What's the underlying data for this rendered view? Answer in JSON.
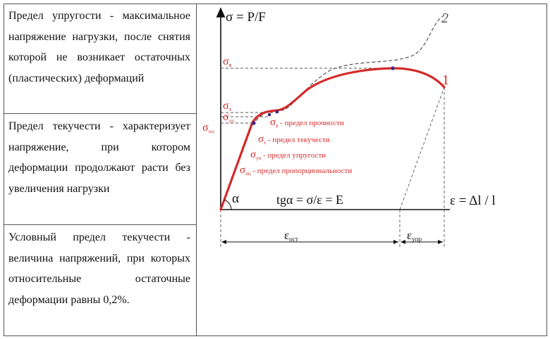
{
  "definitions": [
    {
      "text": "Предел упругости - максимальное напряжение нагрузки, после снятия которой не возникает остаточных (пластических) деформаций"
    },
    {
      "text": "Предел текучести - характеризует напряжение, при котором деформации продолжают расти без увеличения нагрузки"
    },
    {
      "text": "Условный предел текучести - величина напряжений, при которых относительные остаточные деформации равны 0,2%."
    }
  ],
  "diagram": {
    "y_axis_label": "σ = P/F",
    "x_axis_label": "ε = Δl / l",
    "curve1_label": "1",
    "curve2_label": "2",
    "alpha_label": "α",
    "formula": "tgα =  σ/ε = E",
    "sigma_v": "σ",
    "sigma_v_sub": "в",
    "sigma_t": "σ",
    "sigma_t_sub": "т",
    "sigma_up": "σ",
    "sigma_up_sub": "уп",
    "sigma_pts": "σ",
    "sigma_pts_sub": "пц",
    "eps_ost": "ε",
    "eps_ost_sub": "ост",
    "eps_upr": "ε",
    "eps_upr_sub": "упр",
    "legend": [
      {
        "sym": "σ",
        "sub": "в",
        "text": " - предел прочности"
      },
      {
        "sym": "σ",
        "sub": "т",
        "text": " - предел текучести"
      },
      {
        "sym": "σ",
        "sub": "уп",
        "text": " - предел упругости"
      },
      {
        "sym": "σ",
        "sub": "пц",
        "text": " - предел пропорциональности"
      }
    ]
  },
  "colors": {
    "curve": "#d42a2a",
    "dash": "#555555",
    "dot": "#3a2a8a",
    "axis": "#111111"
  }
}
